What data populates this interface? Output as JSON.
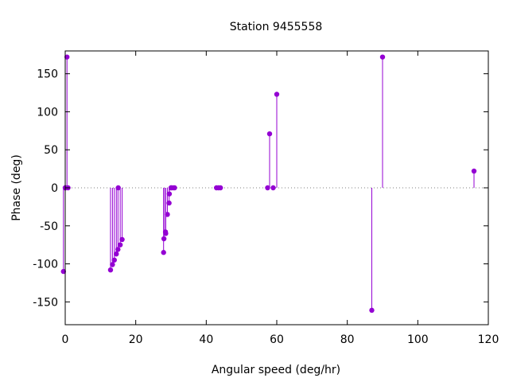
{
  "chart_data": {
    "type": "scatter",
    "style": "impulses-with-points",
    "title": "Station 9455558",
    "xlabel": "Angular speed (deg/hr)",
    "ylabel": "Phase (deg)",
    "xlim": [
      0,
      120
    ],
    "ylim": [
      -180,
      180
    ],
    "xticks": [
      0,
      20,
      40,
      60,
      80,
      100,
      120
    ],
    "yticks": [
      -150,
      -100,
      -50,
      0,
      50,
      100,
      150
    ],
    "zero_line": "dotted",
    "grid": false,
    "color": "#9400d3",
    "x": [
      -0.5,
      0.0,
      0.04,
      0.08,
      0.5,
      0.8,
      12.85,
      13.4,
      13.94,
      14.5,
      14.96,
      15.04,
      15.6,
      16.14,
      27.9,
      28.0,
      28.43,
      28.51,
      28.98,
      29.46,
      29.53,
      30.0,
      30.08,
      30.6,
      31.02,
      42.9,
      43.48,
      44.03,
      57.4,
      57.97,
      58.98,
      60.0,
      86.95,
      90.0,
      115.94
    ],
    "y": [
      -110,
      0,
      0,
      0,
      172,
      0,
      -108,
      -101,
      -95,
      -87,
      -81,
      0,
      -75,
      -68,
      -85,
      -67,
      -58,
      -60,
      -35,
      -20,
      -8,
      0,
      0,
      0,
      0,
      0,
      0,
      0,
      0,
      71,
      0,
      123,
      -161,
      172,
      22
    ]
  }
}
